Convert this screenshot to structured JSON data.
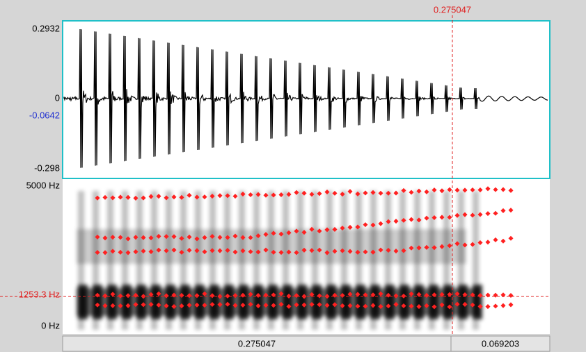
{
  "waveform": {
    "max_label": "0.2932",
    "zero_label": "0",
    "cursor_value_label": "-0.0642",
    "min_label": "-0.298"
  },
  "spectrogram": {
    "max_label": "5000 Hz",
    "cursor_label": "1253.3 Hz",
    "min_label": "0 Hz"
  },
  "cursor": {
    "time_label": "0.275047"
  },
  "time_bar": {
    "left_segment": "0.275047",
    "right_segment": "0.069203"
  }
}
